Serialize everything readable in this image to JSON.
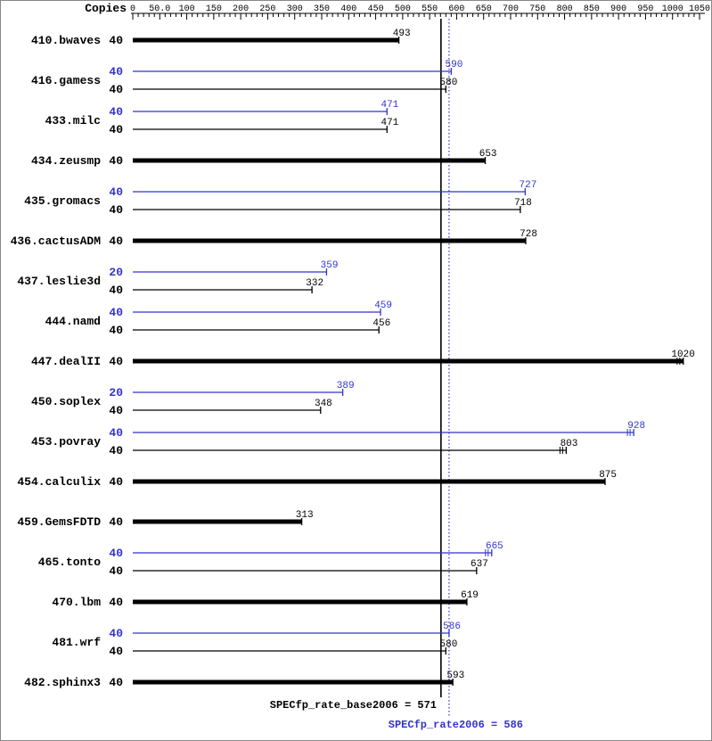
{
  "colors": {
    "base": "#000000",
    "peak": "#3333cc",
    "background": "#ffffff",
    "border": "#888888"
  },
  "chart_data": {
    "type": "bar",
    "orientation": "horizontal",
    "title": "",
    "axis": {
      "label": "Copies",
      "min": 0,
      "max": 1050,
      "major_step": 50,
      "minor_step": 10,
      "tick_labels": [
        "0",
        "50.0",
        "100",
        "150",
        "200",
        "250",
        "300",
        "350",
        "400",
        "450",
        "500",
        "550",
        "600",
        "650",
        "700",
        "750",
        "800",
        "850",
        "900",
        "950",
        "1000",
        "1050"
      ]
    },
    "xlim": [
      0,
      1050
    ],
    "series": [
      {
        "id": "base",
        "label": "SPECfp_rate_base2006"
      },
      {
        "id": "peak",
        "label": "SPECfp_rate2006"
      }
    ],
    "reference_lines": [
      {
        "series": "base",
        "value": 571,
        "style": "solid"
      },
      {
        "series": "peak",
        "value": 586,
        "style": "dotted"
      }
    ],
    "summary": {
      "base_label": "SPECfp_rate_base2006 = 571",
      "peak_label": "SPECfp_rate2006 = 586"
    },
    "benchmarks": [
      {
        "name": "410.bwaves",
        "bars": [
          {
            "series": "base",
            "copies": 40,
            "value": 493,
            "thick": true
          }
        ]
      },
      {
        "name": "416.gamess",
        "bars": [
          {
            "series": "peak",
            "copies": 40,
            "value": 590
          },
          {
            "series": "base",
            "copies": 40,
            "value": 580
          }
        ]
      },
      {
        "name": "433.milc",
        "bars": [
          {
            "series": "peak",
            "copies": 40,
            "value": 471
          },
          {
            "series": "base",
            "copies": 40,
            "value": 471
          }
        ]
      },
      {
        "name": "434.zeusmp",
        "bars": [
          {
            "series": "base",
            "copies": 40,
            "value": 653,
            "thick": true
          }
        ]
      },
      {
        "name": "435.gromacs",
        "bars": [
          {
            "series": "peak",
            "copies": 40,
            "value": 727
          },
          {
            "series": "base",
            "copies": 40,
            "value": 718
          }
        ]
      },
      {
        "name": "436.cactusADM",
        "bars": [
          {
            "series": "base",
            "copies": 40,
            "value": 728,
            "thick": true
          }
        ]
      },
      {
        "name": "437.leslie3d",
        "bars": [
          {
            "series": "peak",
            "copies": 20,
            "value": 359
          },
          {
            "series": "base",
            "copies": 40,
            "value": 332
          }
        ]
      },
      {
        "name": "444.namd",
        "bars": [
          {
            "series": "peak",
            "copies": 40,
            "value": 459
          },
          {
            "series": "base",
            "copies": 40,
            "value": 456
          }
        ]
      },
      {
        "name": "447.dealII",
        "bars": [
          {
            "series": "base",
            "copies": 40,
            "value": 1020,
            "thick": true,
            "median_marks": true
          }
        ]
      },
      {
        "name": "450.soplex",
        "bars": [
          {
            "series": "peak",
            "copies": 20,
            "value": 389
          },
          {
            "series": "base",
            "copies": 40,
            "value": 348
          }
        ]
      },
      {
        "name": "453.povray",
        "bars": [
          {
            "series": "peak",
            "copies": 40,
            "value": 928,
            "median_marks": true
          },
          {
            "series": "base",
            "copies": 40,
            "value": 803,
            "median_marks": true
          }
        ]
      },
      {
        "name": "454.calculix",
        "bars": [
          {
            "series": "base",
            "copies": 40,
            "value": 875,
            "thick": true
          }
        ]
      },
      {
        "name": "459.GemsFDTD",
        "bars": [
          {
            "series": "base",
            "copies": 40,
            "value": 313,
            "thick": true
          }
        ]
      },
      {
        "name": "465.tonto",
        "bars": [
          {
            "series": "peak",
            "copies": 40,
            "value": 665,
            "median_marks": true
          },
          {
            "series": "base",
            "copies": 40,
            "value": 637
          }
        ]
      },
      {
        "name": "470.lbm",
        "bars": [
          {
            "series": "base",
            "copies": 40,
            "value": 619,
            "thick": true
          }
        ]
      },
      {
        "name": "481.wrf",
        "bars": [
          {
            "series": "peak",
            "copies": 40,
            "value": 586
          },
          {
            "series": "base",
            "copies": 40,
            "value": 580
          }
        ]
      },
      {
        "name": "482.sphinx3",
        "bars": [
          {
            "series": "base",
            "copies": 40,
            "value": 593,
            "thick": true
          }
        ]
      }
    ]
  }
}
